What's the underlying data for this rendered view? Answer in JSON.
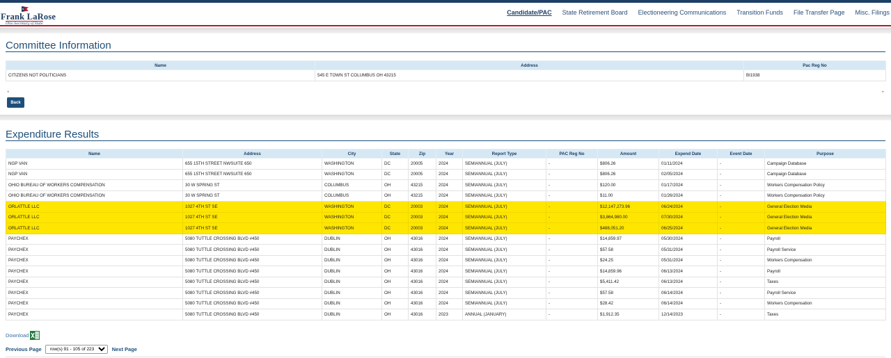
{
  "header": {
    "logo_name": "Frank LaRose",
    "logo_subtitle": "Ohio Secretary of State",
    "nav": [
      {
        "label": "Candidate/PAC",
        "active": true
      },
      {
        "label": "State Retirement Board",
        "active": false
      },
      {
        "label": "Electioneering Communications",
        "active": false
      },
      {
        "label": "Transition Funds",
        "active": false
      },
      {
        "label": "File Transfer Page",
        "active": false
      },
      {
        "label": "Misc. Filings",
        "active": false
      }
    ]
  },
  "committee": {
    "title": "Committee Information",
    "columns": [
      "Name",
      "Address",
      "Pac Reg No"
    ],
    "row": [
      "CITIZENS NOT POLITICIANS",
      "545 E TOWN ST COLUMBUS OH 43215",
      "BI1938"
    ],
    "scroll_left": "◂",
    "scroll_right": "▸",
    "back_label": "Back"
  },
  "expenditures": {
    "title": "Expenditure Results",
    "columns": [
      "Name",
      "Address",
      "City",
      "State",
      "Zip",
      "Year",
      "Report Type",
      "PAC Reg No",
      "Amount",
      "Expend Date",
      "Event Date",
      "Purpose"
    ],
    "rows": [
      {
        "cells": [
          "NGP VAN",
          "655 15TH STREET NWSUITE 650",
          "WASHINGTON",
          "DC",
          "20005",
          "2024",
          "SEMIANNUAL (JULY)",
          "-",
          "$806.26",
          "01/11/2024",
          "-",
          "Campaign Database"
        ],
        "highlight": false
      },
      {
        "cells": [
          "NGP VAN",
          "655 15TH STREET NWSUITE 650",
          "WASHINGTON",
          "DC",
          "20005",
          "2024",
          "SEMIANNUAL (JULY)",
          "-",
          "$806.26",
          "02/05/2024",
          "-",
          "Campaign Database"
        ],
        "highlight": false
      },
      {
        "cells": [
          "OHIO BUREAU OF WORKERS COMPENSATION",
          "30 W SPRING ST",
          "COLUMBUS",
          "OH",
          "43215",
          "2024",
          "SEMIANNUAL (JULY)",
          "-",
          "$120.00",
          "01/17/2024",
          "-",
          "Workers Compensation Policy"
        ],
        "highlight": false
      },
      {
        "cells": [
          "OHIO BUREAU OF WORKERS COMPENSATION",
          "30 W SPRING ST",
          "COLUMBUS",
          "OH",
          "43215",
          "2024",
          "SEMIANNUAL (JULY)",
          "-",
          "$11.00",
          "01/26/2024",
          "-",
          "Workers Compensation Policy"
        ],
        "highlight": false
      },
      {
        "cells": [
          "ORLATTLE LLC",
          "1027 4TH ST SE",
          "WASHINGTON",
          "DC",
          "20003",
          "2024",
          "SEMIANNUAL (JULY)",
          "-",
          "$12,147,273.96",
          "06/24/2024",
          "-",
          "General Election Media"
        ],
        "highlight": true
      },
      {
        "cells": [
          "ORLATTLE LLC",
          "1027 4TH ST SE",
          "WASHINGTON",
          "DC",
          "20003",
          "2024",
          "SEMIANNUAL (JULY)",
          "-",
          "$3,864,980.00",
          "07/30/2024",
          "-",
          "General Election Media"
        ],
        "highlight": true
      },
      {
        "cells": [
          "ORLATTLE LLC",
          "1027 4TH ST SE",
          "WASHINGTON",
          "DC",
          "20003",
          "2024",
          "SEMIANNUAL (JULY)",
          "-",
          "$488,051.20",
          "06/25/2024",
          "-",
          "General Election Media"
        ],
        "highlight": true
      },
      {
        "cells": [
          "PAYCHEX",
          "5080 TUTTLE CROSSING BLVD #450",
          "DUBLIN",
          "OH",
          "43016",
          "2024",
          "SEMIANNUAL (JULY)",
          "-",
          "$14,859.97",
          "05/30/2024",
          "-",
          "Payroll"
        ],
        "highlight": false
      },
      {
        "cells": [
          "PAYCHEX",
          "5080 TUTTLE CROSSING BLVD #450",
          "DUBLIN",
          "OH",
          "43016",
          "2024",
          "SEMIANNUAL (JULY)",
          "-",
          "$57.58",
          "05/31/2024",
          "-",
          "Payroll Service"
        ],
        "highlight": false
      },
      {
        "cells": [
          "PAYCHEX",
          "5080 TUTTLE CROSSING BLVD #450",
          "DUBLIN",
          "OH",
          "43016",
          "2024",
          "SEMIANNUAL (JULY)",
          "-",
          "$24.25",
          "05/31/2024",
          "-",
          "Workers Compensation"
        ],
        "highlight": false
      },
      {
        "cells": [
          "PAYCHEX",
          "5080 TUTTLE CROSSING BLVD #450",
          "DUBLIN",
          "OH",
          "43016",
          "2024",
          "SEMIANNUAL (JULY)",
          "-",
          "$14,859.96",
          "06/13/2024",
          "-",
          "Payroll"
        ],
        "highlight": false
      },
      {
        "cells": [
          "PAYCHEX",
          "5080 TUTTLE CROSSING BLVD #450",
          "DUBLIN",
          "OH",
          "43016",
          "2024",
          "SEMIANNUAL (JULY)",
          "-",
          "$5,411.42",
          "06/13/2024",
          "-",
          "Taxes"
        ],
        "highlight": false
      },
      {
        "cells": [
          "PAYCHEX",
          "5080 TUTTLE CROSSING BLVD #450",
          "DUBLIN",
          "OH",
          "43016",
          "2024",
          "SEMIANNUAL (JULY)",
          "-",
          "$57.58",
          "06/14/2024",
          "-",
          "Payroll Service"
        ],
        "highlight": false
      },
      {
        "cells": [
          "PAYCHEX",
          "5080 TUTTLE CROSSING BLVD #450",
          "DUBLIN",
          "OH",
          "43016",
          "2024",
          "SEMIANNUAL (JULY)",
          "-",
          "$28.42",
          "06/14/2024",
          "-",
          "Workers Compensation"
        ],
        "highlight": false
      },
      {
        "cells": [
          "PAYCHEX",
          "5080 TUTTLE CROSSING BLVD #450",
          "DUBLIN",
          "OH",
          "43016",
          "2023",
          "ANNUAL (JANUARY)",
          "-",
          "$1,912.35",
          "12/14/2023",
          "-",
          "Taxes"
        ],
        "highlight": false
      }
    ]
  },
  "footer": {
    "download_label": "Download",
    "prev_label": "Previous Page",
    "next_label": "Next Page",
    "rows_selected": "row(s) 91 - 105 of 223"
  },
  "colors": {
    "brand_navy": "#1e3f66",
    "brand_red": "#b5172b",
    "header_cell": "#d6e8f3",
    "highlight": "#ffe600"
  }
}
